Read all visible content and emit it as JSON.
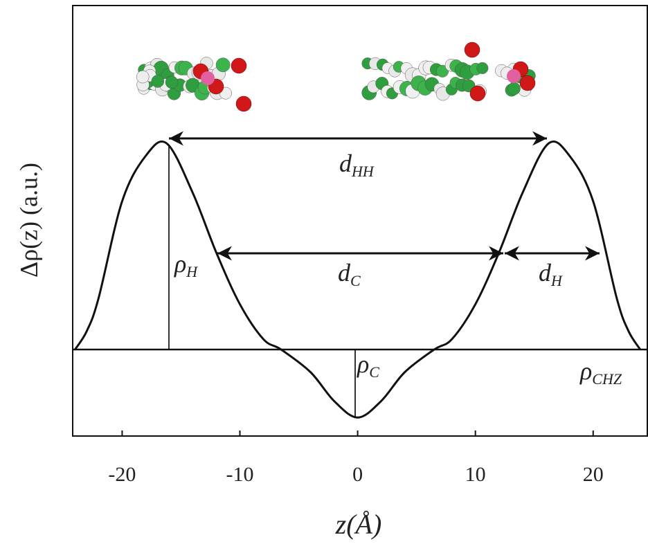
{
  "chart_data": {
    "type": "line",
    "y_label": "Δρ(z) (a.u.)",
    "x_label": "z(Å)",
    "x": [
      -24,
      -23,
      -22,
      -20,
      -18,
      -16.2,
      -14,
      -12,
      -10,
      -8,
      -6.5,
      -4,
      -2,
      0,
      2,
      4,
      6.5,
      8,
      10,
      12,
      14,
      16.2,
      18,
      20,
      22,
      23,
      24
    ],
    "values": [
      0,
      0.09,
      0.25,
      0.72,
      0.94,
      1.0,
      0.76,
      0.47,
      0.22,
      0.05,
      0,
      -0.11,
      -0.25,
      -0.33,
      -0.25,
      -0.11,
      0,
      0.05,
      0.22,
      0.47,
      0.76,
      1.0,
      0.94,
      0.72,
      0.25,
      0.09,
      0
    ],
    "color": "#111111",
    "xlim": [
      -24.2,
      24.6
    ],
    "ylim": [
      -0.42,
      1.67
    ],
    "xticks": [
      -20,
      -10,
      0,
      10,
      20
    ],
    "annotations": [
      {
        "text": "d",
        "sub": "HH"
      },
      {
        "text": "d",
        "sub": "C"
      },
      {
        "text": "d",
        "sub": "H"
      },
      {
        "text": "ρ",
        "sub": "H"
      },
      {
        "text": "ρ",
        "sub": "C"
      },
      {
        "text": "ρ",
        "sub": "CHZ"
      }
    ]
  }
}
